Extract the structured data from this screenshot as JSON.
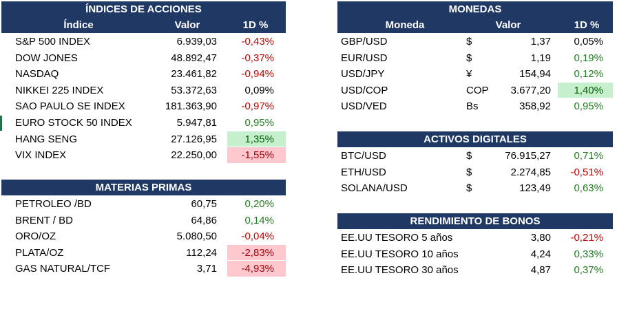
{
  "tables": [
    {
      "title": "ÍNDICES DE ACCIONES",
      "columns": [
        "Índice",
        "Valor",
        "1D %"
      ],
      "rows": [
        {
          "cells": [
            "S&P 500 INDEX",
            "6.939,03",
            "-0,43%"
          ],
          "color": "#c00000"
        },
        {
          "cells": [
            "DOW JONES",
            "48.892,47",
            "-0,37%"
          ],
          "color": "#c00000"
        },
        {
          "cells": [
            "NASDAQ",
            "23.461,82",
            "-0,94%"
          ],
          "color": "#c00000"
        },
        {
          "cells": [
            "NIKKEI 225 INDEX",
            "53.372,63",
            "0,09%"
          ],
          "color": "#000000"
        },
        {
          "cells": [
            "SAO PAULO SE INDEX",
            "181.363,90",
            "-0,97%"
          ],
          "color": "#c00000"
        },
        {
          "cells": [
            "EURO STOCK 50 INDEX",
            "5.947,81",
            "0,95%"
          ],
          "color": "#1e7b1e"
        },
        {
          "cells": [
            "HANG SENG",
            "27.126,95",
            "1,35%"
          ],
          "color": "#006100",
          "fill": "#c6efce"
        },
        {
          "cells": [
            "VIX INDEX",
            "22.250,00",
            "-1,55%"
          ],
          "color": "#9c0006",
          "fill": "#ffc7ce"
        }
      ]
    },
    {
      "title": "MATERIAS PRIMAS",
      "rows": [
        {
          "cells": [
            "PETROLEO /BD",
            "60,75",
            "0,20%"
          ],
          "color": "#1e7b1e"
        },
        {
          "cells": [
            "BRENT / BD",
            "64,86",
            "0,14%"
          ],
          "color": "#1e7b1e"
        },
        {
          "cells": [
            "ORO/OZ",
            "5.080,50",
            "-0,04%"
          ],
          "color": "#c00000"
        },
        {
          "cells": [
            "PLATA/OZ",
            "112,24",
            "-2,83%"
          ],
          "color": "#9c0006",
          "fill": "#ffc7ce"
        },
        {
          "cells": [
            "GAS NATURAL/TCF",
            "3,71",
            "-4,93%"
          ],
          "color": "#9c0006",
          "fill": "#ffc7ce"
        }
      ]
    },
    {
      "title": "MONEDAS",
      "columns": [
        "Moneda",
        "Valor",
        "1D %"
      ],
      "rows": [
        {
          "cells": [
            "GBP/USD",
            "$",
            "1,37",
            "0,05%"
          ],
          "color": "#000000"
        },
        {
          "cells": [
            "EUR/USD",
            "$",
            "1,19",
            "0,19%"
          ],
          "color": "#1e7b1e"
        },
        {
          "cells": [
            "USD/JPY",
            "¥",
            "154,94",
            "0,12%"
          ],
          "color": "#1e7b1e"
        },
        {
          "cells": [
            "USD/COP",
            "COP",
            "3.677,20",
            "1,40%"
          ],
          "color": "#006100",
          "fill": "#c6efce"
        },
        {
          "cells": [
            "USD/VED",
            "Bs",
            "358,92",
            "0,95%"
          ],
          "color": "#1e7b1e"
        }
      ]
    },
    {
      "title": "ACTIVOS DIGITALES",
      "rows": [
        {
          "cells": [
            "BTC/USD",
            "$",
            "76.915,27",
            "0,71%"
          ],
          "color": "#1e7b1e"
        },
        {
          "cells": [
            "ETH/USD",
            "$",
            "2.274,85",
            "-0,51%"
          ],
          "color": "#c00000"
        },
        {
          "cells": [
            "SOLANA/USD",
            "$",
            "123,49",
            "0,63%"
          ],
          "color": "#1e7b1e"
        }
      ]
    },
    {
      "title": "RENDIMIENTO DE BONOS",
      "rows": [
        {
          "cells": [
            "EE.UU TESORO 5 años",
            "3,80",
            "-0,21%"
          ],
          "color": "#c00000"
        },
        {
          "cells": [
            "EE.UU TESORO 10 años",
            "4,24",
            "0,33%"
          ],
          "color": "#1e7b1e"
        },
        {
          "cells": [
            "EE.UU TESORO 30 años",
            "4,87",
            "0,37%"
          ],
          "color": "#1e7b1e"
        }
      ]
    }
  ]
}
